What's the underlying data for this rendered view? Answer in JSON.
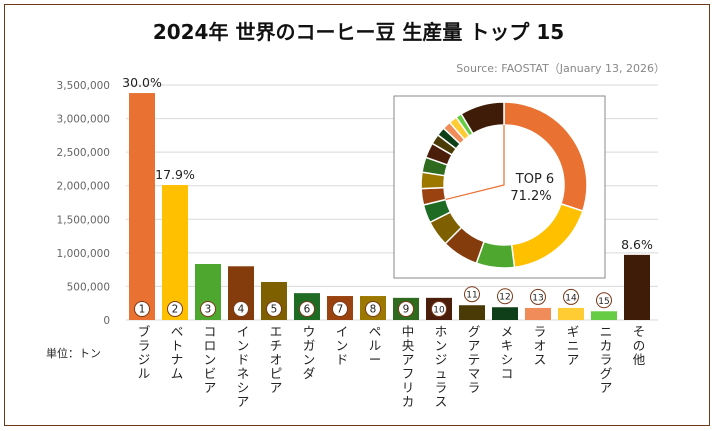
{
  "chart_data": {
    "type": "bar",
    "title": "2024年 世界のコーヒー豆 生産量 トップ 15",
    "source": "Source: FAOSTAT（January 13, 2026）",
    "unit_label": "単位：トン",
    "ylim": [
      0,
      3500000
    ],
    "yticks": [
      "0",
      "500,000",
      "1,000,000",
      "1,500,000",
      "2,000,000",
      "2,500,000",
      "3,000,000",
      "3,500,000"
    ],
    "grid": true,
    "categories": [
      "ブラジル",
      "ベトナム",
      "コロンビア",
      "インドネシア",
      "エチオピア",
      "ウガンダ",
      "インド",
      "ペルー",
      "中央アフリカ",
      "ホンジュラス",
      "グアテマラ",
      "メキシコ",
      "ラオス",
      "ギニア",
      "ニカラグア",
      "その他"
    ],
    "ranks": [
      "1",
      "2",
      "3",
      "4",
      "5",
      "6",
      "7",
      "8",
      "9",
      "10",
      "11",
      "12",
      "13",
      "14",
      "15",
      ""
    ],
    "values": [
      3380000,
      2010000,
      834000,
      800000,
      566000,
      400000,
      357000,
      357000,
      330000,
      330000,
      220000,
      190000,
      180000,
      180000,
      130000,
      970000
    ],
    "colors": [
      "#E97132",
      "#FFC000",
      "#4EA72E",
      "#843C0C",
      "#7F6000",
      "#1E6B24",
      "#9A4210",
      "#9C7800",
      "#2E6B1E",
      "#4A1E0A",
      "#4A3A06",
      "#0F3F18",
      "#F08C5A",
      "#FFCC33",
      "#66CC44",
      "#3E1C08"
    ],
    "data_labels": {
      "0": "30.0%",
      "1": "17.9%",
      "15": "8.6%"
    },
    "inset": {
      "type": "donut",
      "center_line1": "TOP 6",
      "center_line2": "71.2%"
    }
  }
}
